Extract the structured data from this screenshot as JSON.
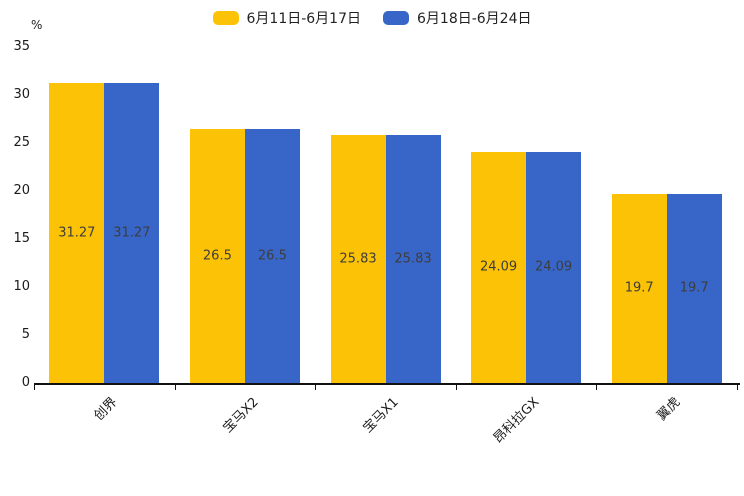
{
  "chart_data": {
    "type": "bar",
    "title": "",
    "categories": [
      "创界",
      "宝马X2",
      "宝马X1",
      "昂科拉GX",
      "翼虎"
    ],
    "series": [
      {
        "name": "6月11日-6月17日",
        "color": "#FCC306",
        "values": [
          31.27,
          26.5,
          25.83,
          24.09,
          19.7
        ]
      },
      {
        "name": "6月18日-6月24日",
        "color": "#3866C8",
        "values": [
          31.27,
          26.5,
          25.83,
          24.09,
          19.7
        ]
      }
    ],
    "bar_labels": [
      [
        "31.27",
        "26.5",
        "25.83",
        "24.09",
        "19.7"
      ],
      [
        "31.27",
        "26.5",
        "25.83",
        "24.09",
        "19.7"
      ]
    ],
    "xlabel": "",
    "ylabel": "%",
    "ylim": [
      0,
      35
    ],
    "yticks": [
      "0",
      "5",
      "10",
      "15",
      "20",
      "25",
      "30",
      "35"
    ],
    "grid": false,
    "legend_position": "top-center",
    "text_color": "#1a1a1a",
    "bar_label_color": "#3d3d3d"
  }
}
